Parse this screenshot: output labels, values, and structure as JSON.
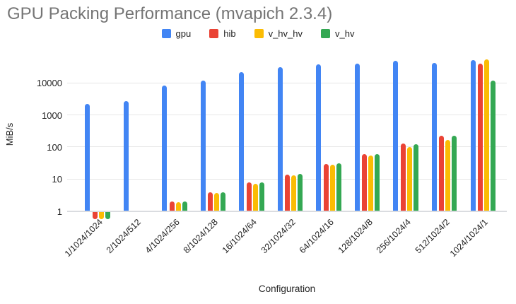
{
  "title": "GPU Packing Performance (mvapich 2.3.4)",
  "title_color": "#757575",
  "chart_data": {
    "type": "bar",
    "y_scale": "log",
    "title": "GPU Packing Performance (mvapich 2.3.4)",
    "xlabel": "Configuration",
    "ylabel": "MiB/s",
    "ylim": [
      1,
      60000
    ],
    "y_ticks": [
      1,
      10,
      100,
      1000,
      10000
    ],
    "grid": true,
    "legend_position": "top",
    "categories": [
      "1/1024/1024",
      "2/1024/512",
      "4/1024/256",
      "8/1024/128",
      "16/1024/64",
      "32/1024/32",
      "64/1024/16",
      "128/1024/8",
      "256/1024/4",
      "512/1024/2",
      "1024/1024/1"
    ],
    "series": [
      {
        "name": "gpu",
        "color": "#4285F4",
        "values": [
          2200,
          2700,
          8300,
          12000,
          22000,
          31000,
          39000,
          41000,
          48000,
          43000,
          52000
        ]
      },
      {
        "name": "hib",
        "color": "#EA4335",
        "values": [
          0.6,
          null,
          2.0,
          3.8,
          7.8,
          14,
          30,
          60,
          130,
          230,
          40000
        ]
      },
      {
        "name": "v_hv_hv",
        "color": "#FBBC04",
        "values": [
          0.6,
          null,
          1.9,
          3.7,
          7.2,
          13,
          28,
          53,
          100,
          165,
          55000
        ]
      },
      {
        "name": "v_hv",
        "color": "#34A853",
        "values": [
          0.6,
          null,
          2.0,
          3.8,
          7.8,
          14.5,
          31,
          60,
          125,
          220,
          12000
        ]
      }
    ]
  }
}
